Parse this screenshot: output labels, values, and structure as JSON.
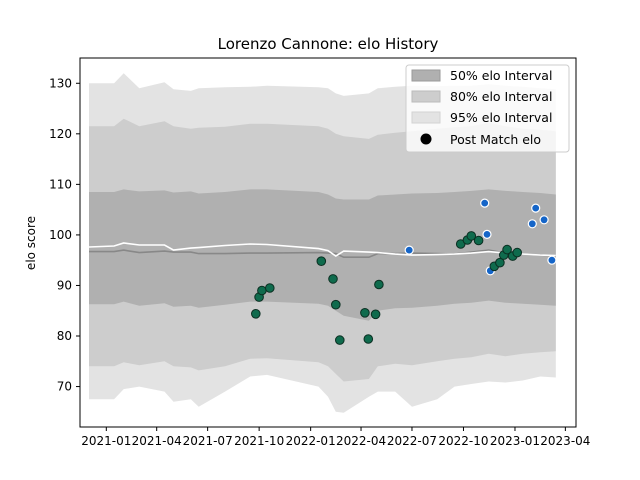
{
  "chart_data": {
    "type": "line",
    "title": "Lorenzo Cannone: elo History",
    "xlabel": "",
    "ylabel": "elo score",
    "ylim": [
      62,
      135
    ],
    "xlim": [
      "2020-11-15",
      "2023-04-20"
    ],
    "y_ticks": [
      70,
      80,
      90,
      100,
      110,
      120,
      130
    ],
    "x_ticks": [
      "2021-01",
      "2021-04",
      "2021-07",
      "2021-10",
      "2022-01",
      "2022-04",
      "2022-07",
      "2022-10",
      "2023-01",
      "2023-04"
    ],
    "legend": {
      "placement": "top-right",
      "entries": [
        "50% elo Interval",
        "80% elo Interval",
        "95% elo Interval",
        "Post Match elo"
      ]
    },
    "colors": {
      "band50": "#b0b0b0",
      "band80": "#cdcdcd",
      "band95": "#e3e3e3",
      "median_line": "#888888",
      "mean_line": "#ffffff",
      "point_win": "#0f6b4d",
      "point_loss": "#1565c8"
    },
    "bands": {
      "x": [
        "2020-12-01",
        "2021-01-15",
        "2021-02-01",
        "2021-03-01",
        "2021-04-15",
        "2021-05-01",
        "2021-06-01",
        "2021-06-15",
        "2021-08-01",
        "2021-09-15",
        "2021-10-15",
        "2022-01-15",
        "2022-02-01",
        "2022-02-15",
        "2022-03-01",
        "2022-04-15",
        "2022-05-01",
        "2022-06-01",
        "2022-07-01",
        "2022-08-15",
        "2022-09-15",
        "2022-10-15",
        "2022-11-15",
        "2022-12-15",
        "2023-01-15",
        "2023-02-15",
        "2023-03-15"
      ],
      "median": [
        96.7,
        96.7,
        97.0,
        96.5,
        96.8,
        96.6,
        96.6,
        96.3,
        96.3,
        96.4,
        96.4,
        96.5,
        96.4,
        96.3,
        95.6,
        95.6,
        96.3,
        96.3,
        96.4,
        96.3,
        96.2,
        96.6,
        97.0,
        96.4,
        96.2,
        96.0,
        95.8
      ],
      "mean": [
        97.6,
        97.8,
        98.4,
        98.0,
        98.0,
        97.0,
        97.4,
        97.5,
        97.9,
        98.2,
        98.1,
        97.3,
        96.9,
        95.8,
        96.8,
        96.6,
        96.5,
        96.2,
        96.0,
        96.1,
        96.2,
        96.4,
        96.7,
        96.4,
        96.2,
        96.0,
        95.9
      ],
      "lo50": [
        86.3,
        86.3,
        86.8,
        86.0,
        86.5,
        85.8,
        86.0,
        85.6,
        86.2,
        86.8,
        86.8,
        86.4,
        86.0,
        85.0,
        84.0,
        83.0,
        85.0,
        85.5,
        85.6,
        86.0,
        86.4,
        86.6,
        87.0,
        86.6,
        86.4,
        86.2,
        86.0
      ],
      "hi50": [
        108.5,
        108.5,
        109.0,
        108.6,
        108.8,
        108.4,
        108.6,
        108.2,
        108.5,
        109.0,
        109.0,
        108.5,
        108.0,
        107.2,
        107.0,
        107.0,
        107.8,
        108.0,
        108.2,
        108.3,
        108.5,
        108.7,
        109.0,
        108.7,
        108.5,
        108.3,
        108.0
      ],
      "lo80": [
        74.0,
        74.0,
        74.8,
        74.2,
        75.0,
        74.0,
        73.8,
        73.2,
        74.0,
        75.5,
        75.6,
        74.8,
        74.0,
        72.5,
        71.0,
        71.5,
        74.0,
        74.5,
        74.2,
        75.0,
        75.5,
        75.8,
        76.5,
        76.0,
        76.5,
        76.8,
        77.0
      ],
      "hi80": [
        121.5,
        121.5,
        123.0,
        121.5,
        122.5,
        121.5,
        121.0,
        121.2,
        121.4,
        122.0,
        122.0,
        121.5,
        121.0,
        120.0,
        119.5,
        119.0,
        119.8,
        120.2,
        120.5,
        121.0,
        121.3,
        121.5,
        122.2,
        121.5,
        121.0,
        120.8,
        120.5
      ],
      "lo95": [
        67.5,
        67.5,
        69.5,
        70.0,
        69.0,
        67.0,
        67.5,
        66.0,
        69.0,
        72.0,
        72.3,
        70.0,
        68.0,
        65.0,
        64.8,
        68.0,
        69.0,
        69.0,
        66.0,
        67.5,
        70.0,
        70.5,
        71.0,
        70.8,
        71.2,
        72.0,
        71.8
      ],
      "hi95": [
        130.0,
        130.0,
        132.0,
        129.0,
        130.2,
        128.8,
        128.5,
        129.0,
        129.2,
        129.3,
        129.5,
        129.2,
        129.0,
        128.0,
        127.5,
        128.0,
        129.0,
        129.3,
        129.5,
        129.4,
        129.5,
        129.5,
        129.8,
        129.5,
        129.3,
        129.0,
        128.8
      ]
    },
    "series": [
      {
        "name": "Post Match elo",
        "points": [
          {
            "x": "2021-09-25",
            "y": 84.4,
            "result": "win"
          },
          {
            "x": "2021-10-01",
            "y": 87.7,
            "result": "win"
          },
          {
            "x": "2021-10-06",
            "y": 89.0,
            "result": "win"
          },
          {
            "x": "2021-10-20",
            "y": 89.5,
            "result": "win"
          },
          {
            "x": "2022-01-20",
            "y": 94.8,
            "result": "win"
          },
          {
            "x": "2022-02-10",
            "y": 91.3,
            "result": "win"
          },
          {
            "x": "2022-02-15",
            "y": 86.2,
            "result": "win"
          },
          {
            "x": "2022-02-22",
            "y": 79.2,
            "result": "win"
          },
          {
            "x": "2022-04-08",
            "y": 84.6,
            "result": "win"
          },
          {
            "x": "2022-04-14",
            "y": 79.4,
            "result": "win"
          },
          {
            "x": "2022-04-27",
            "y": 84.3,
            "result": "win"
          },
          {
            "x": "2022-05-03",
            "y": 90.2,
            "result": "win"
          },
          {
            "x": "2022-06-26",
            "y": 97.0,
            "result": "loss"
          },
          {
            "x": "2022-09-26",
            "y": 98.2,
            "result": "win"
          },
          {
            "x": "2022-10-08",
            "y": 99.0,
            "result": "win"
          },
          {
            "x": "2022-10-15",
            "y": 99.8,
            "result": "win"
          },
          {
            "x": "2022-10-28",
            "y": 98.9,
            "result": "win"
          },
          {
            "x": "2022-11-08",
            "y": 106.3,
            "result": "loss"
          },
          {
            "x": "2022-11-12",
            "y": 100.1,
            "result": "loss"
          },
          {
            "x": "2022-11-18",
            "y": 92.9,
            "result": "loss"
          },
          {
            "x": "2022-11-25",
            "y": 93.8,
            "result": "win"
          },
          {
            "x": "2022-12-05",
            "y": 94.5,
            "result": "win"
          },
          {
            "x": "2022-12-12",
            "y": 96.0,
            "result": "win"
          },
          {
            "x": "2022-12-18",
            "y": 97.1,
            "result": "win"
          },
          {
            "x": "2022-12-28",
            "y": 95.8,
            "result": "win"
          },
          {
            "x": "2023-01-05",
            "y": 96.5,
            "result": "win"
          },
          {
            "x": "2023-02-01",
            "y": 102.2,
            "result": "loss"
          },
          {
            "x": "2023-02-07",
            "y": 105.3,
            "result": "loss"
          },
          {
            "x": "2023-02-22",
            "y": 103.0,
            "result": "loss"
          },
          {
            "x": "2023-03-08",
            "y": 95.0,
            "result": "loss"
          }
        ]
      }
    ]
  }
}
